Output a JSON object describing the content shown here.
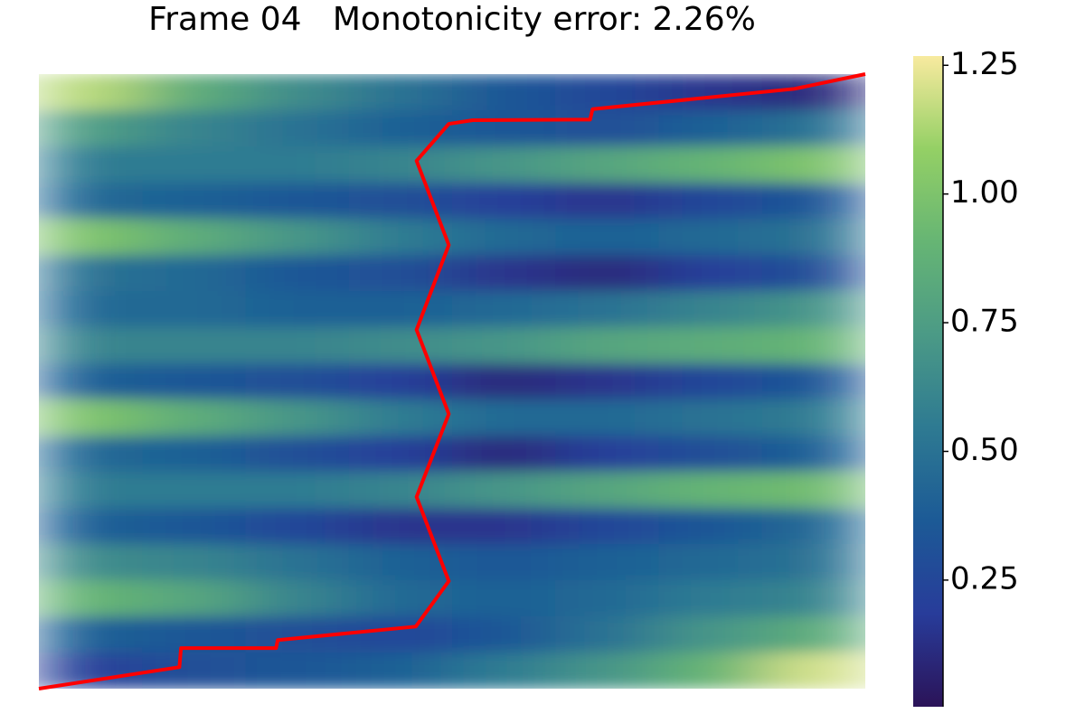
{
  "chart_data": {
    "type": "heatmap",
    "title": "Frame 04   Monotonicity error: 2.26%",
    "xlim": [
      0,
      1
    ],
    "ylim": [
      0,
      1
    ],
    "z": [
      [
        1.15,
        0.85,
        0.65,
        0.5,
        0.35,
        0.25,
        0.15,
        0.1
      ],
      [
        0.75,
        0.6,
        0.5,
        0.4,
        0.35,
        0.3,
        0.4,
        0.5
      ],
      [
        0.55,
        0.55,
        0.55,
        0.6,
        0.7,
        0.8,
        0.9,
        1.0
      ],
      [
        0.45,
        0.4,
        0.35,
        0.3,
        0.2,
        0.15,
        0.25,
        0.35
      ],
      [
        1.0,
        0.85,
        0.7,
        0.55,
        0.45,
        0.4,
        0.45,
        0.5
      ],
      [
        0.5,
        0.45,
        0.35,
        0.3,
        0.15,
        0.1,
        0.2,
        0.3
      ],
      [
        0.45,
        0.45,
        0.4,
        0.4,
        0.45,
        0.5,
        0.6,
        0.7
      ],
      [
        0.6,
        0.6,
        0.6,
        0.65,
        0.7,
        0.8,
        0.85,
        0.9
      ],
      [
        0.4,
        0.35,
        0.3,
        0.2,
        0.1,
        0.15,
        0.25,
        0.35
      ],
      [
        1.0,
        0.85,
        0.7,
        0.55,
        0.45,
        0.45,
        0.5,
        0.55
      ],
      [
        0.45,
        0.4,
        0.3,
        0.2,
        0.1,
        0.2,
        0.3,
        0.4
      ],
      [
        0.55,
        0.55,
        0.55,
        0.6,
        0.7,
        0.8,
        0.9,
        0.95
      ],
      [
        0.4,
        0.35,
        0.25,
        0.15,
        0.15,
        0.25,
        0.35,
        0.45
      ],
      [
        0.65,
        0.6,
        0.5,
        0.4,
        0.35,
        0.4,
        0.45,
        0.5
      ],
      [
        0.9,
        0.8,
        0.6,
        0.45,
        0.4,
        0.45,
        0.55,
        0.6
      ],
      [
        0.4,
        0.35,
        0.3,
        0.25,
        0.35,
        0.5,
        0.7,
        0.85
      ],
      [
        0.2,
        0.3,
        0.35,
        0.4,
        0.55,
        0.7,
        0.9,
        1.2
      ]
    ],
    "colormap": [
      "#2b1358",
      "#283c9a",
      "#1c5a96",
      "#2e7a92",
      "#4b9a86",
      "#66b574",
      "#94d065",
      "#f8ea9f"
    ],
    "clim": [
      0.004,
      1.268
    ],
    "cticks": [
      0.25,
      {
        "value": 0.5,
        "label": "0.50"
      },
      0.75,
      {
        "value": 1,
        "label": "1.00"
      },
      1.25
    ],
    "path": {
      "color": "#ff0000",
      "x": [
        0,
        0.17,
        0.172,
        0.287,
        0.289,
        0.456,
        0.496,
        0.457,
        0.496,
        0.457,
        0.496,
        0.457,
        0.496,
        0.525,
        0.667,
        0.67,
        0.914,
        1
      ],
      "y": [
        0,
        0.035,
        0.066,
        0.066,
        0.079,
        0.101,
        0.175,
        0.312,
        0.447,
        0.584,
        0.722,
        0.859,
        0.919,
        0.925,
        0.926,
        0.943,
        0.976,
        1
      ]
    }
  }
}
